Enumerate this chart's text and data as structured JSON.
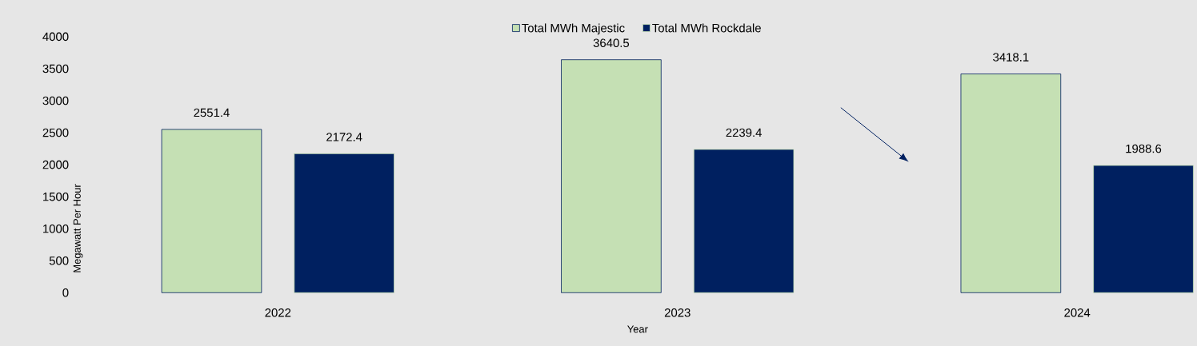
{
  "chart_data": {
    "type": "bar",
    "xlabel": "Year",
    "ylabel": "Megawatt Per Hour",
    "categories": [
      "2022",
      "2023",
      "2024"
    ],
    "series": [
      {
        "name": "Total MWh Majestic",
        "color": "#c5e0b4",
        "values": [
          2551.4,
          3640.5,
          3418.1
        ]
      },
      {
        "name": "Total MWh Rockdale",
        "color": "#002060",
        "values": [
          2172.4,
          2239.4,
          1988.6
        ]
      }
    ],
    "ylim": [
      0,
      4000
    ],
    "yticks": [
      0,
      500,
      1000,
      1500,
      2000,
      2500,
      3000,
      3500,
      4000
    ],
    "grid": false,
    "legend": "top",
    "data_labels": true
  }
}
